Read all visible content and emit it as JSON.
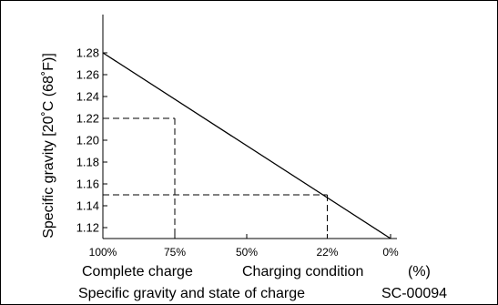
{
  "chart_data": {
    "type": "line",
    "title": "Specific gravity and state of charge",
    "figure_id": "SC-00094",
    "ylabel": "Specific gravity [20˚C (68˚F)]",
    "xlabel_left": "Complete charge",
    "xlabel_right": "Charging condition",
    "xunit": "(%)",
    "x_reversed": true,
    "xlim": [
      100,
      0
    ],
    "ylim": [
      1.11,
      1.28
    ],
    "x_ticks": [
      {
        "value": 100,
        "label": "100%"
      },
      {
        "value": 75,
        "label": "75%"
      },
      {
        "value": 50,
        "label": "50%"
      },
      {
        "value": 22,
        "label": "22%"
      },
      {
        "value": 0,
        "label": "0%"
      }
    ],
    "y_ticks": [
      {
        "value": 1.28,
        "label": "1.28"
      },
      {
        "value": 1.26,
        "label": "1.26"
      },
      {
        "value": 1.24,
        "label": "1.24"
      },
      {
        "value": 1.22,
        "label": "1.22"
      },
      {
        "value": 1.2,
        "label": "1.20"
      },
      {
        "value": 1.18,
        "label": "1.18"
      },
      {
        "value": 1.16,
        "label": "1.16"
      },
      {
        "value": 1.14,
        "label": "1.14"
      },
      {
        "value": 1.12,
        "label": "1.12"
      }
    ],
    "series": [
      {
        "x": [
          100,
          0
        ],
        "y": [
          1.28,
          1.11
        ]
      }
    ],
    "reference_points": [
      {
        "x": 75,
        "y": 1.22
      },
      {
        "x": 22,
        "y": 1.15
      }
    ],
    "grid": false
  }
}
